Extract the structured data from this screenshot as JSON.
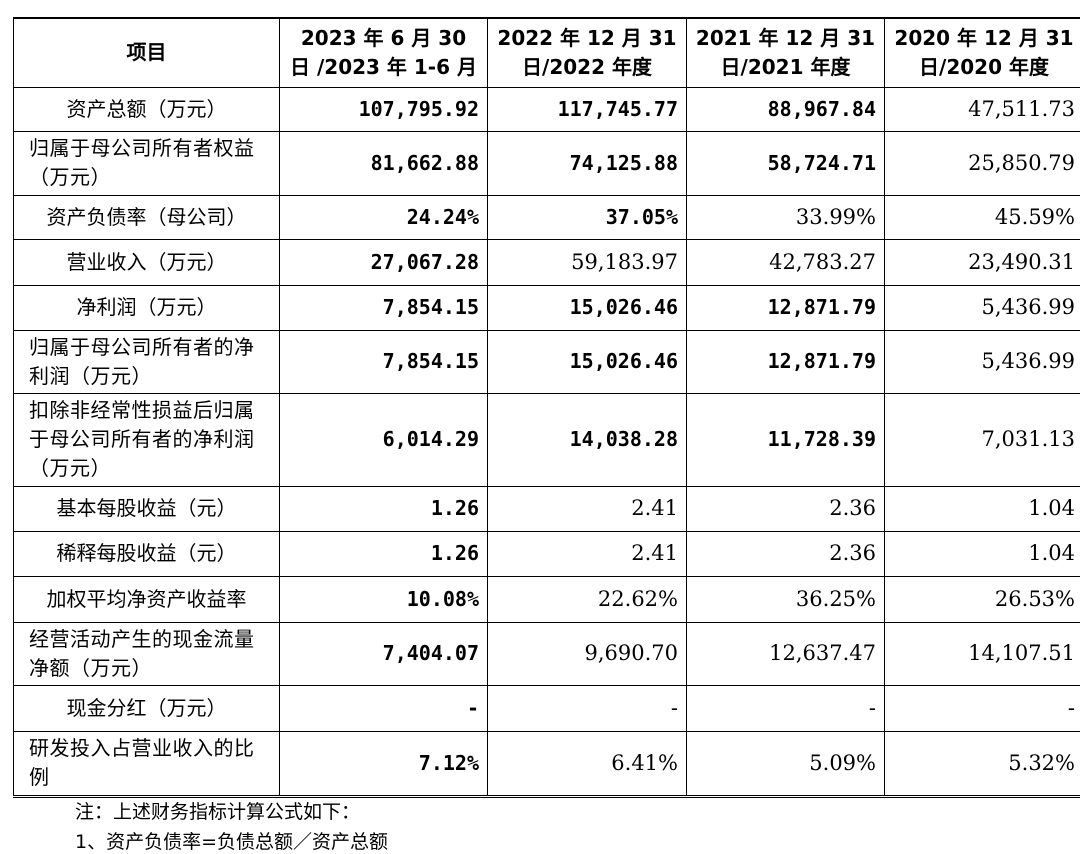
{
  "table": {
    "headers": [
      "项目",
      "2023 年 6 月 30 日 /2023 年 1-6 月",
      "2022 年 12 月 31 日/2022 年度",
      "2021 年 12 月 31 日/2021 年度",
      "2020 年 12 月 31 日/2020 年度"
    ],
    "rows": [
      {
        "label": "资产总额（万元）",
        "values": [
          "107,795.92",
          "117,745.77",
          "88,967.84",
          "47,511.73"
        ]
      },
      {
        "label": "归属于母公司所有者权益（万元）",
        "values": [
          "81,662.88",
          "74,125.88",
          "58,724.71",
          "25,850.79"
        ]
      },
      {
        "label": "资产负债率（母公司）",
        "values": [
          "24.24%",
          "37.05%",
          "33.99%",
          "45.59%"
        ]
      },
      {
        "label": "营业收入（万元）",
        "values": [
          "27,067.28",
          "59,183.97",
          "42,783.27",
          "23,490.31"
        ]
      },
      {
        "label": "净利润（万元）",
        "values": [
          "7,854.15",
          "15,026.46",
          "12,871.79",
          "5,436.99"
        ]
      },
      {
        "label": "归属于母公司所有者的净利润（万元）",
        "values": [
          "7,854.15",
          "15,026.46",
          "12,871.79",
          "5,436.99"
        ]
      },
      {
        "label": "扣除非经常性损益后归属于母公司所有者的净利润（万元）",
        "values": [
          "6,014.29",
          "14,038.28",
          "11,728.39",
          "7,031.13"
        ]
      },
      {
        "label": "基本每股收益（元）",
        "values": [
          "1.26",
          "2.41",
          "2.36",
          "1.04"
        ]
      },
      {
        "label": "稀释每股收益（元）",
        "values": [
          "1.26",
          "2.41",
          "2.36",
          "1.04"
        ]
      },
      {
        "label": "加权平均净资产收益率",
        "values": [
          "10.08%",
          "22.62%",
          "36.25%",
          "26.53%"
        ]
      },
      {
        "label": "经营活动产生的现金流量净额（万元）",
        "values": [
          "7,404.07",
          "9,690.70",
          "12,637.47",
          "14,107.51"
        ]
      },
      {
        "label": "现金分红（万元）",
        "values": [
          "-",
          "-",
          "-",
          "-"
        ]
      },
      {
        "label": "研发投入占营业收入的比例",
        "values": [
          "7.12%",
          "6.41%",
          "5.09%",
          "5.32%"
        ]
      }
    ]
  },
  "notes": {
    "title": "注：上述财务指标计算公式如下：",
    "line1": "1、资产负债率=负债总额／资产总额"
  }
}
